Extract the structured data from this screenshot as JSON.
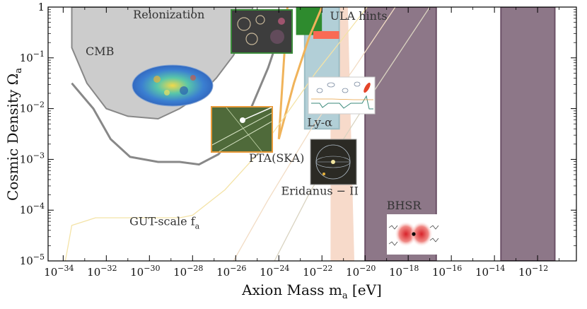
{
  "chart_data": {
    "type": "area",
    "title": "",
    "xlabel": "Axion Mass m_a [eV]",
    "ylabel": "Cosmic Density Ω_a",
    "x_scale": "log",
    "y_scale": "log",
    "xlim_log10": [
      -34.7,
      -10.2
    ],
    "ylim_log10": [
      -5,
      0
    ],
    "x_ticks": [
      {
        "exp": -34,
        "label": "10",
        "sup": "−34"
      },
      {
        "exp": -32,
        "label": "10",
        "sup": "−32"
      },
      {
        "exp": -30,
        "label": "10",
        "sup": "−30"
      },
      {
        "exp": -28,
        "label": "10",
        "sup": "−28"
      },
      {
        "exp": -26,
        "label": "10",
        "sup": "−26"
      },
      {
        "exp": -24,
        "label": "10",
        "sup": "−24"
      },
      {
        "exp": -22,
        "label": "10",
        "sup": "−22"
      },
      {
        "exp": -20,
        "label": "10",
        "sup": "−20"
      },
      {
        "exp": -18,
        "label": "10",
        "sup": "−18"
      },
      {
        "exp": -16,
        "label": "10",
        "sup": "−16"
      },
      {
        "exp": -14,
        "label": "10",
        "sup": "−14"
      },
      {
        "exp": -12,
        "label": "10",
        "sup": "−12"
      }
    ],
    "y_ticks": [
      {
        "exp": 0,
        "label": "1",
        "sup": ""
      },
      {
        "exp": -1,
        "label": "10",
        "sup": "−1"
      },
      {
        "exp": -2,
        "label": "10",
        "sup": "−2"
      },
      {
        "exp": -3,
        "label": "10",
        "sup": "−3"
      },
      {
        "exp": -4,
        "label": "10",
        "sup": "−4"
      },
      {
        "exp": -5,
        "label": "10",
        "sup": "−5"
      }
    ],
    "regions": [
      {
        "name": "CMB-excluded",
        "color": "#cccccc",
        "edge": "#888888",
        "style": "fill",
        "points": [
          [
            -33.6,
            0
          ],
          [
            -33.6,
            -0.8
          ],
          [
            -32.9,
            -1.5
          ],
          [
            -32.0,
            -2.0
          ],
          [
            -31.0,
            -2.15
          ],
          [
            -29.6,
            -2.2
          ],
          [
            -28.6,
            -2.0
          ],
          [
            -27.7,
            -1.75
          ],
          [
            -26.9,
            -1.4
          ],
          [
            -26.1,
            -0.95
          ],
          [
            -25.7,
            -0.6
          ],
          [
            -25.2,
            0
          ]
        ]
      },
      {
        "name": "CMB-future",
        "color": "#888888",
        "style": "line",
        "points": [
          [
            -33.6,
            -1.5
          ],
          [
            -32.6,
            -2.0
          ],
          [
            -31.8,
            -2.6
          ],
          [
            -30.9,
            -2.95
          ],
          [
            -29.6,
            -3.05
          ],
          [
            -28.6,
            -3.05
          ],
          [
            -27.7,
            -3.1
          ],
          [
            -26.8,
            -2.9
          ],
          [
            -25.6,
            -2.3
          ],
          [
            -25.0,
            -1.7
          ],
          [
            -24.5,
            -1.2
          ],
          [
            -24.1,
            -0.7
          ],
          [
            -23.6,
            -0.1
          ]
        ]
      },
      {
        "name": "ULA-hints",
        "color": "#f6d3c1",
        "style": "fill",
        "points": [
          [
            -21.6,
            -5
          ],
          [
            -21.6,
            0
          ],
          [
            -20.8,
            0
          ],
          [
            -20.5,
            -5
          ]
        ]
      },
      {
        "name": "Ly-alpha",
        "color": "#b2cfd7",
        "edge": "#9bbcc4",
        "style": "fill",
        "points": [
          [
            -22.8,
            -2.4
          ],
          [
            -22.8,
            0
          ],
          [
            -21.2,
            0
          ],
          [
            -21.2,
            -2.4
          ]
        ]
      },
      {
        "name": "Reionization",
        "color": "#2e8b2e",
        "style": "fill",
        "points": [
          [
            -23.2,
            0
          ],
          [
            -22.0,
            0
          ],
          [
            -22.0,
            -0.55
          ],
          [
            -23.2,
            -0.55
          ]
        ]
      },
      {
        "name": "PTA-SKA",
        "color": "#f0b35a",
        "style": "line",
        "points": [
          [
            -23.6,
            0
          ],
          [
            -24.0,
            -2.6
          ],
          [
            -23.3,
            -1.5
          ],
          [
            -22.6,
            -0.6
          ],
          [
            -22.0,
            0
          ]
        ]
      },
      {
        "name": "ULA-hints-bar",
        "color": "#f96a55",
        "style": "bar",
        "points": [
          [
            -22.4,
            -0.55
          ],
          [
            -21.2,
            -0.55
          ]
        ]
      },
      {
        "name": "BHSR-1",
        "color": "#8d7788",
        "edge": "#6b5066",
        "style": "fill",
        "points": [
          [
            -20.0,
            -5
          ],
          [
            -20.0,
            0
          ],
          [
            -16.7,
            0
          ],
          [
            -16.7,
            -5
          ]
        ]
      },
      {
        "name": "BHSR-2",
        "color": "#8d7788",
        "edge": "#6b5066",
        "style": "fill",
        "points": [
          [
            -13.7,
            -5
          ],
          [
            -13.7,
            0
          ],
          [
            -11.2,
            0
          ],
          [
            -11.2,
            -5
          ]
        ]
      }
    ],
    "lines": [
      {
        "name": "GUT-scale",
        "color": "#f4e3a6",
        "points": [
          [
            -33.9,
            -5
          ],
          [
            -33.6,
            -4.3
          ],
          [
            -32.5,
            -4.15
          ],
          [
            -30.0,
            -4.15
          ],
          [
            -28.6,
            -4.15
          ],
          [
            -28.0,
            -4.1
          ],
          [
            -26.5,
            -3.6
          ],
          [
            -25.0,
            -2.9
          ],
          [
            -23.8,
            -2.2
          ],
          [
            -22.3,
            -1.3
          ],
          [
            -21.0,
            -0.6
          ],
          [
            -19.9,
            0
          ]
        ]
      },
      {
        "name": "faint-1",
        "color": "#f2dcc4",
        "points": [
          [
            -26.1,
            -5
          ],
          [
            -24.5,
            -3.8
          ],
          [
            -22.5,
            -2.4
          ],
          [
            -20.5,
            -1.2
          ],
          [
            -18.6,
            0
          ]
        ]
      },
      {
        "name": "faint-2",
        "color": "#d9d3c0",
        "points": [
          [
            -24.2,
            -5
          ],
          [
            -22.5,
            -3.6
          ],
          [
            -21.0,
            -2.6
          ],
          [
            -19.5,
            -1.6
          ],
          [
            -17.0,
            0
          ]
        ]
      }
    ],
    "annotations": [
      {
        "text": "Reionization",
        "x": -29.1,
        "y": -0.22
      },
      {
        "text": "ULA hints",
        "x": -20.3,
        "y": -0.25
      },
      {
        "text": "CMB",
        "x": -32.3,
        "y": -0.95
      },
      {
        "text": "Ly-α",
        "x": -22.1,
        "y": -2.35
      },
      {
        "text": "PTA(SKA)",
        "x": -24.1,
        "y": -3.05
      },
      {
        "text": "Eridanus − II",
        "x": -22.1,
        "y": -3.7
      },
      {
        "text": "BHSR",
        "x": -18.2,
        "y": -3.98
      },
      {
        "text": "GUT-scale f",
        "x": -29.3,
        "y": -4.3
      }
    ],
    "insets": [
      "cmb-map",
      "reionization-image",
      "pta-image",
      "lyman-alpha-image",
      "eridanus-image",
      "bhsr-image"
    ]
  }
}
